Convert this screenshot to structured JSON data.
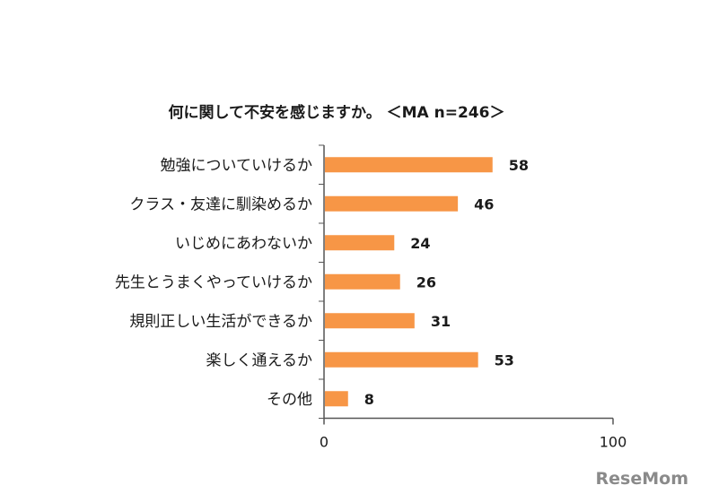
{
  "chart_data": {
    "type": "bar",
    "orientation": "horizontal",
    "title": "何に関して不安を感じますか。 ＜MA n=246＞",
    "categories": [
      "勉強についていけるか",
      "クラス・友達に馴染めるか",
      "いじめにあわないか",
      "先生とうまくやっていけるか",
      "規則正しい生活ができるか",
      "楽しく通えるか",
      "その他"
    ],
    "values": [
      58,
      46,
      24,
      26,
      31,
      53,
      8
    ],
    "xlim": [
      0,
      100
    ],
    "x_ticks": [
      "0",
      "100"
    ],
    "grid": false,
    "bar_color": "#F79646"
  },
  "watermark": "ReseMom"
}
